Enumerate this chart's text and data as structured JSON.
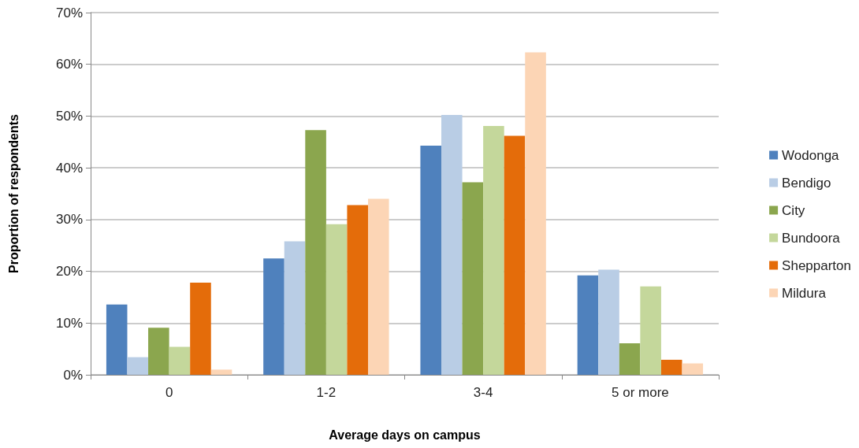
{
  "chart_data": {
    "type": "bar",
    "xlabel": "Average days on campus",
    "ylabel": "Proportion of respondents",
    "categories": [
      "0",
      "1-2",
      "3-4",
      "5 or more"
    ],
    "series": [
      {
        "name": "Wodonga",
        "color": "#4f81bd",
        "values": [
          13.6,
          22.5,
          44.3,
          19.2
        ]
      },
      {
        "name": "Bendigo",
        "color": "#b9cde5",
        "values": [
          3.4,
          25.8,
          50.2,
          20.3
        ]
      },
      {
        "name": "City",
        "color": "#8ba64e",
        "values": [
          9.1,
          47.3,
          37.2,
          6.1
        ]
      },
      {
        "name": "Bundoora",
        "color": "#c4d79b",
        "values": [
          5.4,
          29.1,
          48.1,
          17.1
        ]
      },
      {
        "name": "Shepparton",
        "color": "#e46c0a",
        "values": [
          17.8,
          32.8,
          46.2,
          2.9
        ]
      },
      {
        "name": "Mildura",
        "color": "#fcd5b5",
        "values": [
          1.0,
          34.0,
          62.3,
          2.2
        ]
      }
    ],
    "ylim": [
      0,
      70
    ],
    "yticks": [
      {
        "value": 0,
        "label": "0%"
      },
      {
        "value": 10,
        "label": "10%"
      },
      {
        "value": 20,
        "label": "20%"
      },
      {
        "value": 30,
        "label": "30%"
      },
      {
        "value": 40,
        "label": "40%"
      },
      {
        "value": 50,
        "label": "50%"
      },
      {
        "value": 60,
        "label": "60%"
      },
      {
        "value": 70,
        "label": "70%"
      }
    ],
    "grid": "y",
    "legend": "right"
  }
}
